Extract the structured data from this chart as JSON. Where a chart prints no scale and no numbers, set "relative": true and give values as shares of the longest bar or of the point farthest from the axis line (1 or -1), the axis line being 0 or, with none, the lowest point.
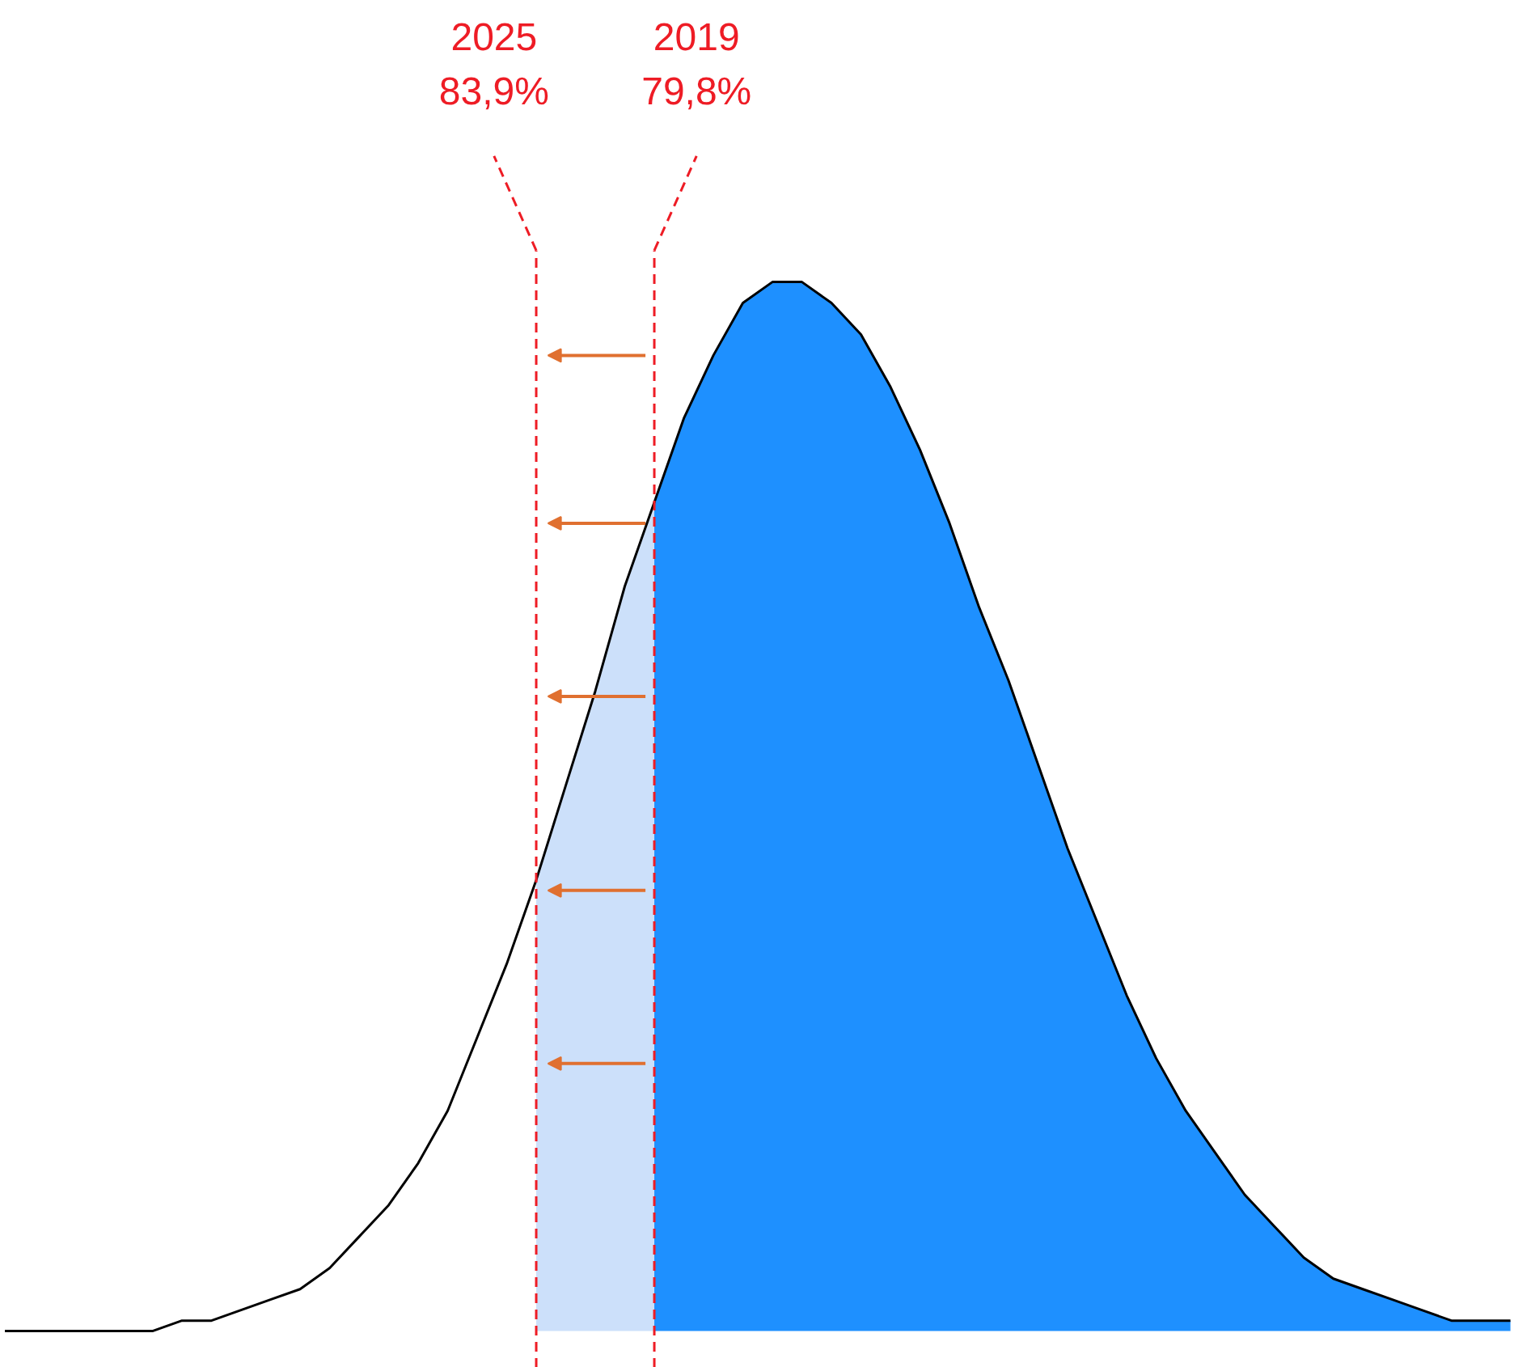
{
  "chart_data": {
    "type": "area",
    "relative": true,
    "categories": [
      null,
      null,
      null,
      null,
      null,
      null,
      null,
      null,
      null,
      null,
      null,
      null,
      null,
      null,
      null,
      null,
      null,
      null,
      null,
      null,
      null,
      null,
      null,
      null,
      null,
      null,
      null,
      null,
      null,
      null,
      null,
      null,
      null,
      null,
      null,
      null,
      null,
      null,
      null,
      null,
      null,
      null,
      null,
      null,
      null,
      null,
      null,
      null,
      null,
      null,
      null,
      null
    ],
    "series": [
      {
        "color": "#cce0fa",
        "values": [
          null,
          null,
          null,
          null,
          null,
          null,
          null,
          null,
          null,
          null,
          null,
          null,
          null,
          null,
          null,
          null,
          null,
          null,
          0.43,
          0.52,
          0.61,
          0.71,
          0.79,
          null,
          null,
          null,
          null,
          null,
          null,
          null,
          null,
          null,
          null,
          null,
          null,
          null,
          null,
          null,
          null,
          null,
          null,
          null,
          null,
          null,
          null,
          null,
          null,
          null,
          null,
          null,
          null,
          null
        ]
      },
      {
        "color": "#1e90ff",
        "values": [
          null,
          null,
          null,
          null,
          null,
          null,
          null,
          null,
          null,
          null,
          null,
          null,
          null,
          null,
          null,
          null,
          null,
          null,
          null,
          null,
          null,
          null,
          0.79,
          0.87,
          0.93,
          0.98,
          1.0,
          1.0,
          0.98,
          0.95,
          0.9,
          0.84,
          0.77,
          0.69,
          0.62,
          0.54,
          0.46,
          0.39,
          0.32,
          0.26,
          0.21,
          0.17,
          0.13,
          0.1,
          0.07,
          0.05,
          0.04,
          0.03,
          0.02,
          0.01,
          0.01,
          0.01
        ]
      },
      {
        "type": "line",
        "color": "#000000",
        "values": [
          0,
          0,
          0,
          0,
          0,
          0,
          0.01,
          0.01,
          0.02,
          0.03,
          0.04,
          0.06,
          0.09,
          0.12,
          0.16,
          0.21,
          0.28,
          0.35,
          0.43,
          0.52,
          0.61,
          0.71,
          0.79,
          0.87,
          0.93,
          0.98,
          1.0,
          1.0,
          0.98,
          0.95,
          0.9,
          0.84,
          0.77,
          0.69,
          0.62,
          0.54,
          0.46,
          0.39,
          0.32,
          0.26,
          0.21,
          0.17,
          0.13,
          0.1,
          0.07,
          0.05,
          0.04,
          0.03,
          0.02,
          0.01,
          0.01,
          0.01
        ]
      }
    ],
    "annotations": [
      "2025\n83,9%",
      "2019\n79,8%"
    ]
  }
}
